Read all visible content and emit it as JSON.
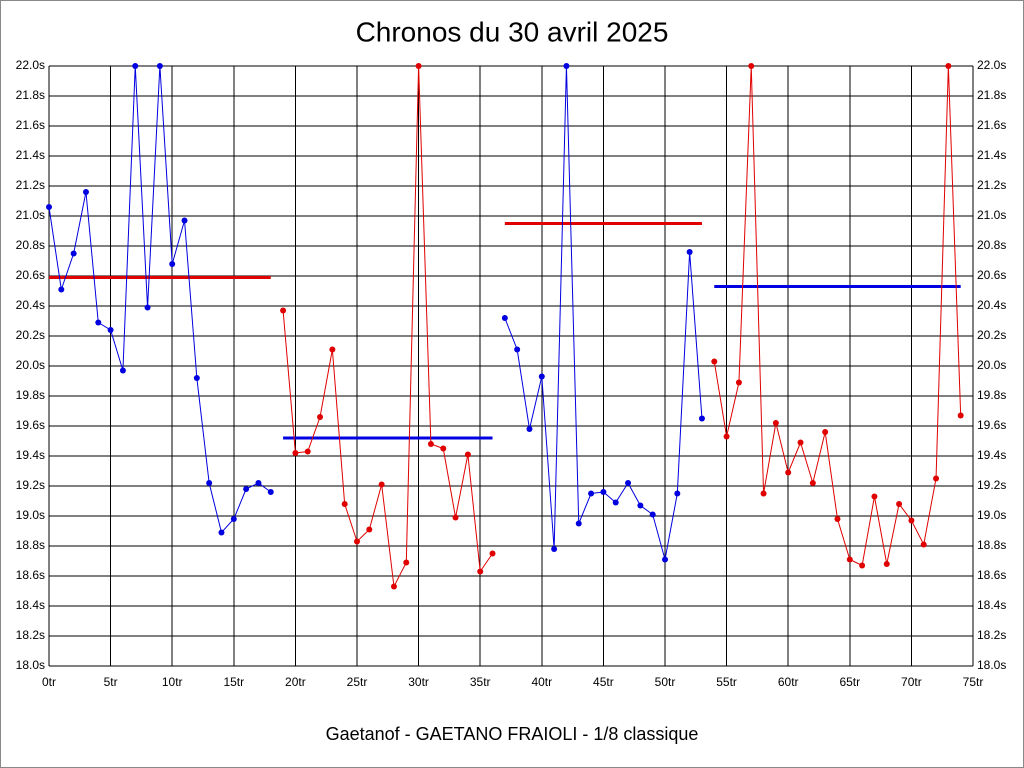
{
  "chart_data": {
    "type": "line",
    "title": "Chronos du 30 avril 2025",
    "caption": "Gaetanof - GAETANO FRAIOLI - 1/8 classique",
    "xlim": [
      0,
      75
    ],
    "ylim": [
      18.0,
      22.0
    ],
    "grid": true,
    "xticks": [
      {
        "value": 0,
        "label": "0tr"
      },
      {
        "value": 5,
        "label": "5tr"
      },
      {
        "value": 10,
        "label": "10tr"
      },
      {
        "value": 15,
        "label": "15tr"
      },
      {
        "value": 20,
        "label": "20tr"
      },
      {
        "value": 25,
        "label": "25tr"
      },
      {
        "value": 30,
        "label": "30tr"
      },
      {
        "value": 35,
        "label": "35tr"
      },
      {
        "value": 40,
        "label": "40tr"
      },
      {
        "value": 45,
        "label": "45tr"
      },
      {
        "value": 50,
        "label": "50tr"
      },
      {
        "value": 55,
        "label": "55tr"
      },
      {
        "value": 60,
        "label": "60tr"
      },
      {
        "value": 65,
        "label": "65tr"
      },
      {
        "value": 70,
        "label": "70tr"
      },
      {
        "value": 75,
        "label": "75tr"
      }
    ],
    "yticks": [
      {
        "value": 18.0,
        "label": "18.0s"
      },
      {
        "value": 18.2,
        "label": "18.2s"
      },
      {
        "value": 18.4,
        "label": "18.4s"
      },
      {
        "value": 18.6,
        "label": "18.6s"
      },
      {
        "value": 18.8,
        "label": "18.8s"
      },
      {
        "value": 19.0,
        "label": "19.0s"
      },
      {
        "value": 19.2,
        "label": "19.2s"
      },
      {
        "value": 19.4,
        "label": "19.4s"
      },
      {
        "value": 19.6,
        "label": "19.6s"
      },
      {
        "value": 19.8,
        "label": "19.8s"
      },
      {
        "value": 20.0,
        "label": "20.0s"
      },
      {
        "value": 20.2,
        "label": "20.2s"
      },
      {
        "value": 20.4,
        "label": "20.4s"
      },
      {
        "value": 20.6,
        "label": "20.6s"
      },
      {
        "value": 20.8,
        "label": "20.8s"
      },
      {
        "value": 21.0,
        "label": "21.0s"
      },
      {
        "value": 21.2,
        "label": "21.2s"
      },
      {
        "value": 21.4,
        "label": "21.4s"
      },
      {
        "value": 21.6,
        "label": "21.6s"
      },
      {
        "value": 21.8,
        "label": "21.8s"
      },
      {
        "value": 22.0,
        "label": "22.0s"
      }
    ],
    "series": [
      {
        "color": "#0000e0",
        "x": [
          0,
          1,
          2,
          3,
          4,
          5,
          6,
          7,
          8,
          9,
          10,
          11,
          12,
          13,
          14,
          15,
          16,
          17,
          18
        ],
        "values": [
          21.06,
          20.51,
          20.75,
          21.16,
          20.29,
          20.24,
          19.97,
          22.0,
          20.39,
          22.0,
          20.68,
          20.97,
          19.92,
          19.22,
          18.89,
          18.98,
          19.18,
          19.22,
          19.16
        ]
      },
      {
        "color": "#e00000",
        "x": [
          19,
          20,
          21,
          22,
          23,
          24,
          25,
          26,
          27,
          28,
          29,
          30,
          31,
          32,
          33,
          34,
          35,
          36
        ],
        "values": [
          20.37,
          19.42,
          19.43,
          19.66,
          20.11,
          19.08,
          18.83,
          18.91,
          19.21,
          18.53,
          18.69,
          22.0,
          19.48,
          19.45,
          18.99,
          19.41,
          18.63,
          18.75
        ]
      },
      {
        "color": "#0000e0",
        "x": [
          37,
          38,
          39,
          40,
          41,
          42,
          43,
          44,
          45,
          46,
          47,
          48,
          49,
          50,
          51,
          52,
          53
        ],
        "values": [
          20.32,
          20.11,
          19.58,
          19.93,
          18.78,
          22.0,
          18.95,
          19.15,
          19.16,
          19.09,
          19.22,
          19.07,
          19.01,
          18.71,
          19.15,
          20.76,
          19.65
        ]
      },
      {
        "color": "#e00000",
        "x": [
          54,
          55,
          56,
          57,
          58,
          59,
          60,
          61,
          62,
          63,
          64,
          65,
          66,
          67,
          68,
          69,
          70,
          71,
          72,
          73,
          74
        ],
        "values": [
          20.03,
          19.53,
          19.89,
          22.0,
          19.15,
          19.62,
          19.29,
          19.49,
          19.22,
          19.56,
          18.98,
          18.71,
          18.67,
          19.13,
          18.68,
          19.08,
          18.97,
          18.81,
          19.25,
          22.0,
          19.67
        ]
      }
    ],
    "averages": [
      {
        "color": "#e00000",
        "x": [
          0,
          18
        ],
        "value": 20.59
      },
      {
        "color": "#0000e0",
        "x": [
          19,
          36
        ],
        "value": 19.52
      },
      {
        "color": "#e00000",
        "x": [
          37,
          53
        ],
        "value": 20.95
      },
      {
        "color": "#0000e0",
        "x": [
          54,
          74
        ],
        "value": 20.53
      }
    ]
  }
}
